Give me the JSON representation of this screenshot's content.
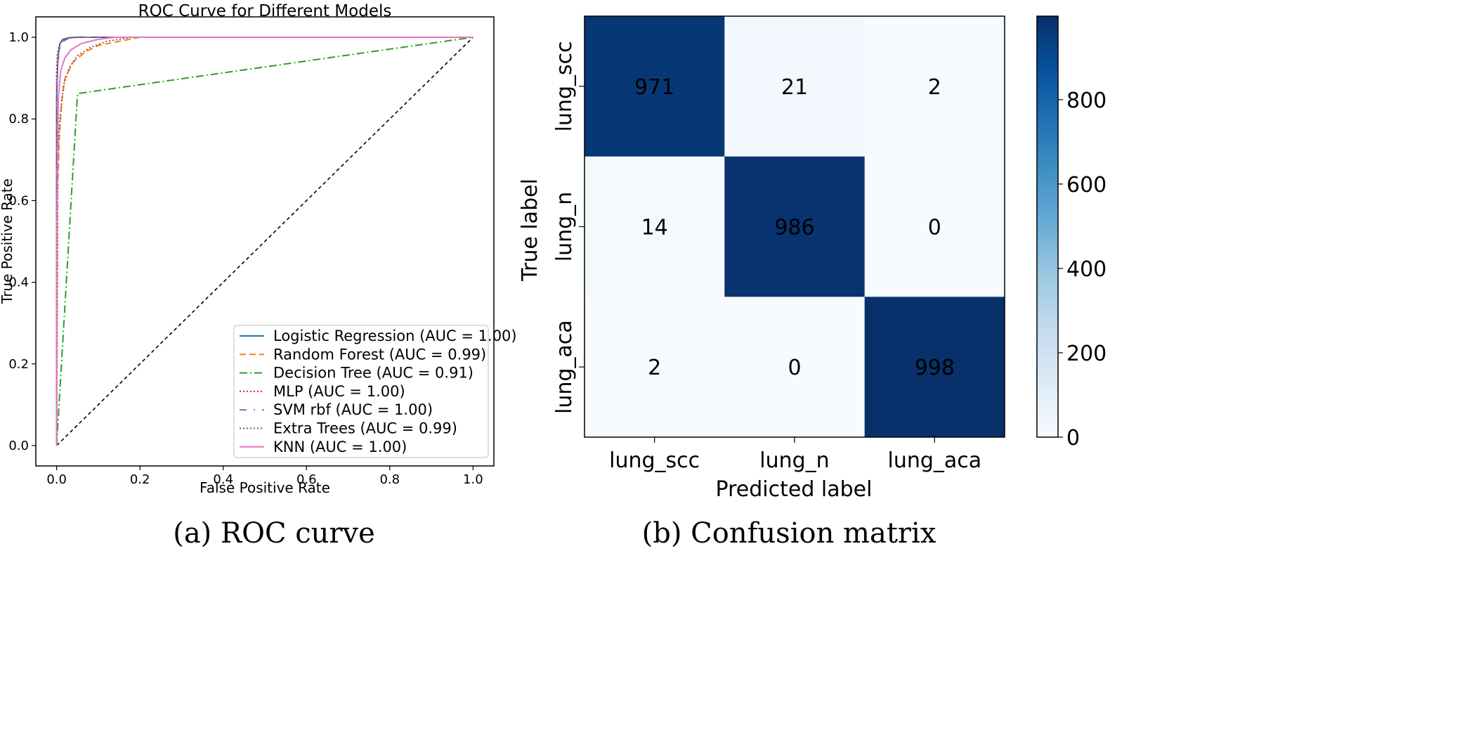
{
  "chart_data": [
    {
      "type": "line",
      "title": "ROC Curve for Different Models",
      "xlabel": "False Positive Rate",
      "ylabel": "True Positive Rate",
      "xlim": [
        -0.05,
        1.05
      ],
      "ylim": [
        -0.05,
        1.05
      ],
      "xticks": [
        0.0,
        0.2,
        0.4,
        0.6,
        0.8,
        1.0
      ],
      "yticks": [
        0.0,
        0.2,
        0.4,
        0.6,
        0.8,
        1.0
      ],
      "grid": false,
      "legend_position": "lower-right",
      "caption": "(a) ROC curve",
      "series": [
        {
          "name": "Logistic Regression (AUC = 1.00)",
          "color": "#1f77b4",
          "dash": "solid",
          "x": [
            0,
            0,
            0.003,
            0.008,
            0.015,
            0.03,
            0.05,
            1.0
          ],
          "y": [
            0,
            0.85,
            0.95,
            0.985,
            0.995,
            0.999,
            1.0,
            1.0
          ]
        },
        {
          "name": "Random Forest (AUC = 0.99)",
          "color": "#ff7f0e",
          "dash": "dashed",
          "x": [
            0,
            0.002,
            0.006,
            0.012,
            0.02,
            0.04,
            0.07,
            0.1,
            0.15,
            0.2,
            1.0
          ],
          "y": [
            0,
            0.6,
            0.75,
            0.84,
            0.9,
            0.94,
            0.965,
            0.98,
            0.99,
            1.0,
            1.0
          ]
        },
        {
          "name": "Decision Tree (AUC = 0.91)",
          "color": "#2ca02c",
          "dash": "dashdot",
          "x": [
            0,
            0.05,
            1.0
          ],
          "y": [
            0,
            0.862,
            1.0
          ]
        },
        {
          "name": "MLP (AUC = 1.00)",
          "color": "#d62728",
          "dash": "dotted",
          "x": [
            0,
            0,
            0.002,
            0.006,
            0.012,
            0.025,
            0.045,
            1.0
          ],
          "y": [
            0,
            0.92,
            0.96,
            0.98,
            0.99,
            0.997,
            1.0,
            1.0
          ]
        },
        {
          "name": "SVM rbf (AUC = 1.00)",
          "color": "#9467bd",
          "dash": "loosedashdot",
          "x": [
            0,
            0,
            0.003,
            0.008,
            0.015,
            0.03,
            0.05,
            1.0
          ],
          "y": [
            0,
            0.88,
            0.94,
            0.975,
            0.99,
            0.998,
            1.0,
            1.0
          ]
        },
        {
          "name": "Extra Trees (AUC = 0.99)",
          "color": "#8c564b",
          "dash": "dotted",
          "x": [
            0,
            0.003,
            0.008,
            0.016,
            0.03,
            0.05,
            0.08,
            0.12,
            0.18,
            1.0
          ],
          "y": [
            0,
            0.7,
            0.8,
            0.88,
            0.925,
            0.955,
            0.975,
            0.99,
            1.0,
            1.0
          ]
        },
        {
          "name": "KNN (AUC = 1.00)",
          "color": "#e377c2",
          "dash": "solid",
          "x": [
            0,
            0,
            0.004,
            0.01,
            0.02,
            0.035,
            0.06,
            0.1,
            0.14,
            1.0
          ],
          "y": [
            0,
            0.5,
            0.85,
            0.92,
            0.95,
            0.97,
            0.985,
            0.995,
            1.0,
            1.0
          ]
        }
      ],
      "reference_line": {
        "x": [
          0,
          1
        ],
        "y": [
          0,
          1
        ],
        "color": "#000000",
        "dash": "dashed"
      }
    },
    {
      "type": "heatmap",
      "xlabel": "Predicted label",
      "ylabel": "True label",
      "x_categories": [
        "lung_scc",
        "lung_n",
        "lung_aca"
      ],
      "y_categories": [
        "lung_scc",
        "lung_n",
        "lung_aca"
      ],
      "values": [
        [
          971,
          21,
          2
        ],
        [
          14,
          986,
          0
        ],
        [
          2,
          0,
          998
        ]
      ],
      "colormap": "Blues",
      "colorbar": {
        "min": 0,
        "max": 998,
        "ticks": [
          0,
          200,
          400,
          600,
          800
        ]
      },
      "caption": "(b) Confusion matrix"
    }
  ]
}
